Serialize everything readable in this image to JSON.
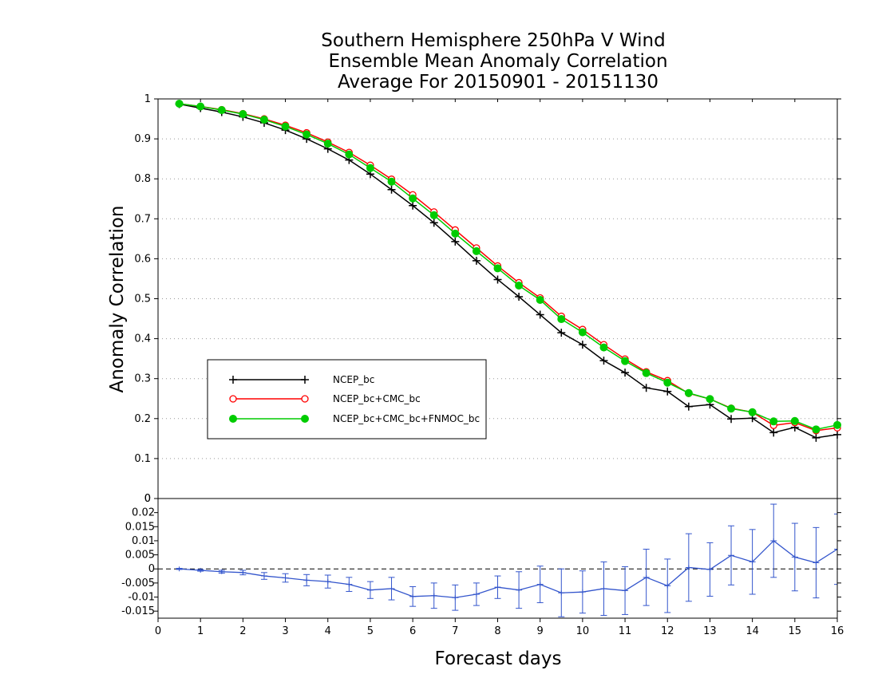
{
  "chart_data": [
    {
      "type": "line",
      "title": [
        "Southern Hemisphere 250hPa V Wind",
        "Ensemble Mean Anomaly Correlation",
        "Average For 20150901 - 20151130"
      ],
      "xlabel": "Forecast days",
      "ylabel": "Anomaly Correlation",
      "xlim": [
        0,
        16
      ],
      "ylim": [
        0,
        1
      ],
      "x_ticks": [
        0,
        1,
        2,
        3,
        4,
        5,
        6,
        7,
        8,
        9,
        10,
        11,
        12,
        13,
        14,
        15,
        16
      ],
      "y_ticks": [
        0,
        0.1,
        0.2,
        0.3,
        0.4,
        0.5,
        0.6,
        0.7,
        0.8,
        0.9,
        1
      ],
      "y_tick_labels": [
        "0",
        "0.1",
        "0.2",
        "0.3",
        "0.4",
        "0.5",
        "0.6",
        "0.7",
        "0.8",
        "0.9",
        "1"
      ],
      "grid": "horizontal dotted",
      "legend_placement": "left",
      "x": [
        0.5,
        1,
        1.5,
        2,
        2.5,
        3,
        3.5,
        4,
        4.5,
        5,
        5.5,
        6,
        6.5,
        7,
        7.5,
        8,
        8.5,
        9,
        9.5,
        10,
        10.5,
        11,
        11.5,
        12,
        12.5,
        13,
        13.5,
        14,
        14.5,
        15,
        15.5,
        16
      ],
      "series": [
        {
          "name": "NCEP_bc",
          "color": "#000000",
          "marker": "plus",
          "values": [
            0.987,
            0.977,
            0.967,
            0.955,
            0.94,
            0.922,
            0.9,
            0.875,
            0.847,
            0.812,
            0.773,
            0.733,
            0.69,
            0.643,
            0.595,
            0.548,
            0.505,
            0.46,
            0.415,
            0.385,
            0.345,
            0.315,
            0.277,
            0.268,
            0.23,
            0.235,
            0.199,
            0.201,
            0.165,
            0.178,
            0.152,
            0.16
          ]
        },
        {
          "name": "NCEP_bc+CMC_bc",
          "color": "#ff0000",
          "marker": "open-circle",
          "values": [
            0.988,
            0.981,
            0.973,
            0.963,
            0.95,
            0.934,
            0.915,
            0.892,
            0.866,
            0.834,
            0.799,
            0.76,
            0.717,
            0.672,
            0.627,
            0.582,
            0.54,
            0.502,
            0.456,
            0.423,
            0.385,
            0.349,
            0.317,
            0.295,
            0.263,
            0.249,
            0.226,
            0.216,
            0.183,
            0.19,
            0.17,
            0.177
          ]
        },
        {
          "name": "NCEP_bc+CMC_bc+FNMOC_bc",
          "color": "#00cc00",
          "marker": "filled-circle",
          "values": [
            0.988,
            0.981,
            0.972,
            0.962,
            0.948,
            0.931,
            0.911,
            0.888,
            0.861,
            0.827,
            0.793,
            0.751,
            0.709,
            0.663,
            0.619,
            0.576,
            0.533,
            0.497,
            0.449,
            0.416,
            0.378,
            0.344,
            0.314,
            0.29,
            0.264,
            0.249,
            0.225,
            0.216,
            0.193,
            0.194,
            0.173,
            0.184
          ]
        }
      ]
    },
    {
      "type": "line",
      "xlim": [
        0,
        16
      ],
      "ylim": [
        -0.0175,
        0.025
      ],
      "y_ticks": [
        -0.015,
        -0.01,
        -0.005,
        0,
        0.005,
        0.01,
        0.015,
        0.02
      ],
      "y_tick_labels": [
        "-0.015",
        "-0.01",
        "-0.005",
        "0",
        "0.005",
        "0.01",
        "0.015",
        "0.02"
      ],
      "top_label": "0",
      "zero_line": "dashed",
      "series": [
        {
          "color": "#3355cc",
          "marker": "tick",
          "x": [
            0.5,
            1,
            1.5,
            2,
            2.5,
            3,
            3.5,
            4,
            4.5,
            5,
            5.5,
            6,
            6.5,
            7,
            7.5,
            8,
            8.5,
            9,
            9.5,
            10,
            10.5,
            11,
            11.5,
            12,
            12.5,
            13,
            13.5,
            14,
            14.5,
            15,
            15.5,
            16
          ],
          "values": [
            0,
            -0.0005,
            -0.001,
            -0.0013,
            -0.0025,
            -0.0032,
            -0.004,
            -0.0045,
            -0.0055,
            -0.0075,
            -0.007,
            -0.0098,
            -0.0095,
            -0.0102,
            -0.009,
            -0.0065,
            -0.0075,
            -0.0055,
            -0.0085,
            -0.0082,
            -0.007,
            -0.0077,
            -0.003,
            -0.006,
            0.0005,
            -0.0002,
            0.0048,
            0.0025,
            0.01,
            0.0042,
            0.0022,
            0.007
          ],
          "error_bars": [
            0.0002,
            0.0003,
            0.0005,
            0.0008,
            0.0012,
            0.0015,
            0.002,
            0.0023,
            0.0025,
            0.003,
            0.004,
            0.0035,
            0.0045,
            0.0045,
            0.004,
            0.004,
            0.0065,
            0.0065,
            0.0085,
            0.0075,
            0.0095,
            0.0085,
            0.01,
            0.0095,
            0.012,
            0.0095,
            0.0105,
            0.0115,
            0.013,
            0.012,
            0.0125,
            0.0125
          ]
        }
      ]
    }
  ]
}
